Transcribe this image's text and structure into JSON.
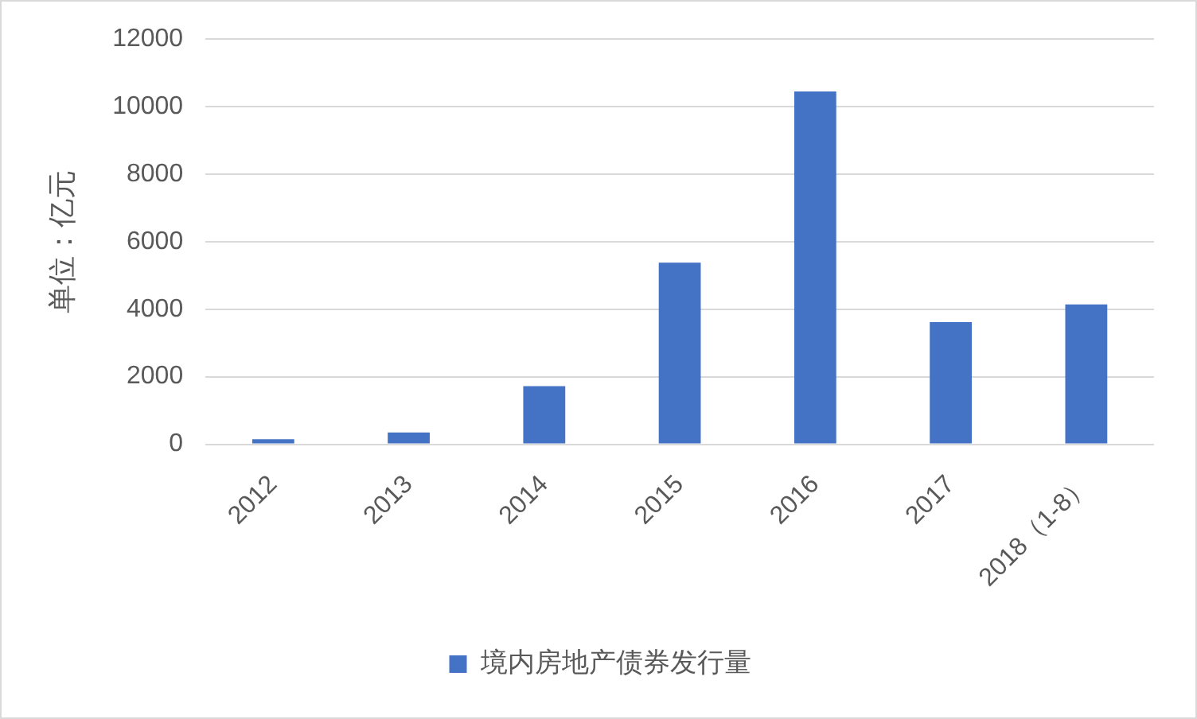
{
  "chart_data": {
    "type": "bar",
    "ylabel": "单位：亿元",
    "categories": [
      "2012",
      "2013",
      "2014",
      "2015",
      "2016",
      "2017",
      "2018（1-8）"
    ],
    "series": [
      {
        "name": "境内房地产债券发行量",
        "color": "#4472c4",
        "values": [
          150,
          350,
          1720,
          5380,
          10450,
          3620,
          4140
        ]
      }
    ],
    "ylim": [
      0,
      12000
    ],
    "yticks": [
      0,
      2000,
      4000,
      6000,
      8000,
      10000,
      12000
    ],
    "grid": "y",
    "legend": "bottom"
  }
}
